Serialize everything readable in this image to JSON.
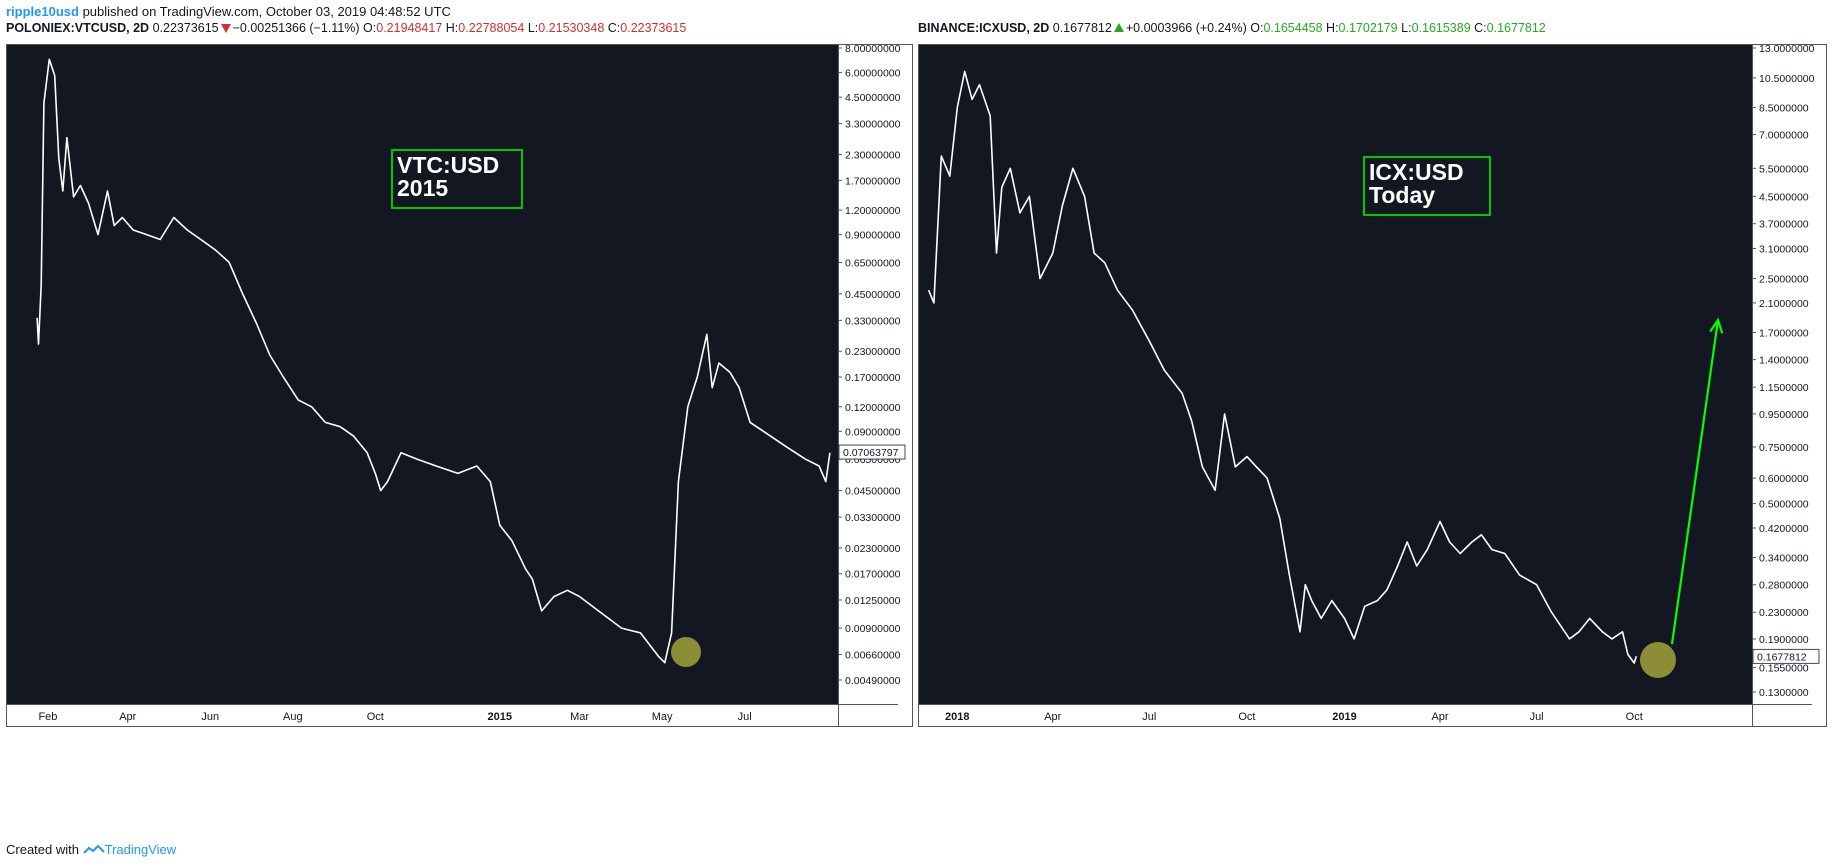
{
  "publish": {
    "author": "ripple10usd",
    "text": " published on TradingView.com, October 03, 2019 04:48:52 UTC"
  },
  "left_header": {
    "symbol": "POLONIEX:VTCUSD, 2D",
    "last": "0.22373615",
    "change": "−0.00251366 (−1.11%)",
    "o_label": "O:",
    "o": "0.21948417",
    "h_label": "H:",
    "h": "0.22788054",
    "l_label": "L:",
    "l": "0.21530348",
    "c_label": "C:",
    "c": "0.22373615"
  },
  "right_header": {
    "symbol": "BINANCE:ICXUSD, 2D",
    "last": "0.1677812",
    "change": "+0.0003966 (+0.24%)",
    "o_label": "O:",
    "o": "0.1654458",
    "h_label": "H:",
    "h": "0.1702179",
    "l_label": "L:",
    "l": "0.1615389",
    "c_label": "C:",
    "c": "0.1677812"
  },
  "footer": {
    "created_with": "Created with",
    "brand": "TradingView"
  },
  "colors": {
    "plot_bg": "#131722",
    "line": "#ffffff",
    "axis_text": "#131722",
    "annotation_box": "#00c800",
    "circle": "#b5b53b",
    "arrow": "#00ff00",
    "down": "#d32f2f",
    "up": "#22ab22"
  },
  "chart_data": [
    {
      "type": "line",
      "ylabel_scale": "log",
      "annotation": [
        "VTC:USD",
        "2015"
      ],
      "yticks": [
        "8.00000000",
        "6.00000000",
        "4.50000000",
        "3.30000000",
        "2.30000000",
        "1.70000000",
        "1.20000000",
        "0.90000000",
        "0.65000000",
        "0.45000000",
        "0.33000000",
        "0.23000000",
        "0.17000000",
        "0.12000000",
        "0.09000000",
        "0.06500000",
        "0.04500000",
        "0.03300000",
        "0.02300000",
        "0.01700000",
        "0.01250000",
        "0.00900000",
        "0.00660000",
        "0.00490000"
      ],
      "xticks": [
        "Feb",
        "Apr",
        "Jun",
        "Aug",
        "Oct",
        "2015",
        "Mar",
        "May",
        "Jul"
      ],
      "last_price_label": "0.07063797",
      "x": [
        "2014-01-24",
        "2014-01-25",
        "2014-01-27",
        "2014-01-29",
        "2014-02-02",
        "2014-02-06",
        "2014-02-09",
        "2014-02-12",
        "2014-02-15",
        "2014-02-20",
        "2014-02-25",
        "2014-03-03",
        "2014-03-10",
        "2014-03-17",
        "2014-03-22",
        "2014-03-28",
        "2014-04-05",
        "2014-04-15",
        "2014-04-25",
        "2014-05-05",
        "2014-05-15",
        "2014-05-25",
        "2014-06-05",
        "2014-06-15",
        "2014-06-25",
        "2014-07-05",
        "2014-07-15",
        "2014-07-25",
        "2014-08-05",
        "2014-08-15",
        "2014-08-25",
        "2014-09-05",
        "2014-09-15",
        "2014-09-25",
        "2014-10-01",
        "2014-10-05",
        "2014-10-10",
        "2014-10-20",
        "2014-11-01",
        "2014-11-15",
        "2014-12-01",
        "2014-12-15",
        "2014-12-25",
        "2015-01-01",
        "2015-01-10",
        "2015-01-20",
        "2015-01-25",
        "2015-02-01",
        "2015-02-10",
        "2015-02-20",
        "2015-03-01",
        "2015-03-15",
        "2015-04-01",
        "2015-04-15",
        "2015-04-28",
        "2015-05-03",
        "2015-05-08",
        "2015-05-13",
        "2015-05-20",
        "2015-05-27",
        "2015-06-03",
        "2015-06-07",
        "2015-06-12",
        "2015-06-20",
        "2015-06-27",
        "2015-07-05",
        "2015-07-15",
        "2015-08-01",
        "2015-08-15",
        "2015-08-25",
        "2015-08-30",
        "2015-09-02"
      ],
      "y": [
        0.34,
        0.25,
        0.5,
        4.2,
        7.0,
        5.8,
        2.2,
        1.5,
        2.8,
        1.4,
        1.6,
        1.3,
        0.9,
        1.5,
        1.0,
        1.1,
        0.95,
        0.9,
        0.85,
        1.1,
        0.95,
        0.85,
        0.75,
        0.65,
        0.45,
        0.32,
        0.22,
        0.17,
        0.13,
        0.12,
        0.1,
        0.095,
        0.085,
        0.07,
        0.055,
        0.045,
        0.05,
        0.07,
        0.065,
        0.06,
        0.055,
        0.06,
        0.05,
        0.03,
        0.025,
        0.018,
        0.016,
        0.011,
        0.013,
        0.014,
        0.013,
        0.011,
        0.009,
        0.0085,
        0.0065,
        0.006,
        0.0085,
        0.05,
        0.12,
        0.17,
        0.28,
        0.15,
        0.2,
        0.18,
        0.15,
        0.1,
        0.09,
        0.075,
        0.065,
        0.06,
        0.05,
        0.07
      ]
    },
    {
      "type": "line",
      "ylabel_scale": "log",
      "annotation": [
        "ICX:USD",
        "Today"
      ],
      "yticks": [
        "13.0000000",
        "10.5000000",
        "8.5000000",
        "7.0000000",
        "5.5000000",
        "4.5000000",
        "3.7000000",
        "3.1000000",
        "2.5000000",
        "2.1000000",
        "1.7000000",
        "1.4000000",
        "1.1500000",
        "0.9500000",
        "0.7500000",
        "0.6000000",
        "0.5000000",
        "0.4200000",
        "0.3400000",
        "0.2800000",
        "0.2300000",
        "0.1900000",
        "0.1550000",
        "0.1300000"
      ],
      "xticks": [
        "2018",
        "Apr",
        "Jul",
        "Oct",
        "2019",
        "Apr",
        "Jul",
        "Oct"
      ],
      "last_price_label": "0.1677812",
      "x": [
        "2017-12-05",
        "2017-12-10",
        "2017-12-17",
        "2017-12-25",
        "2018-01-01",
        "2018-01-08",
        "2018-01-15",
        "2018-01-22",
        "2018-02-01",
        "2018-02-07",
        "2018-02-12",
        "2018-02-20",
        "2018-03-01",
        "2018-03-10",
        "2018-03-20",
        "2018-04-01",
        "2018-04-10",
        "2018-04-20",
        "2018-05-01",
        "2018-05-10",
        "2018-05-20",
        "2018-06-01",
        "2018-06-15",
        "2018-07-01",
        "2018-07-15",
        "2018-08-01",
        "2018-08-10",
        "2018-08-20",
        "2018-09-01",
        "2018-09-10",
        "2018-09-20",
        "2018-10-01",
        "2018-10-10",
        "2018-10-20",
        "2018-11-01",
        "2018-11-10",
        "2018-11-20",
        "2018-11-25",
        "2018-12-01",
        "2018-12-10",
        "2018-12-20",
        "2019-01-01",
        "2019-01-10",
        "2019-01-20",
        "2019-02-01",
        "2019-02-10",
        "2019-02-20",
        "2019-03-01",
        "2019-03-10",
        "2019-03-20",
        "2019-04-01",
        "2019-04-10",
        "2019-04-20",
        "2019-05-01",
        "2019-05-10",
        "2019-05-20",
        "2019-06-01",
        "2019-06-15",
        "2019-07-01",
        "2019-07-15",
        "2019-08-01",
        "2019-08-10",
        "2019-08-20",
        "2019-09-01",
        "2019-09-10",
        "2019-09-20",
        "2019-09-25",
        "2019-10-01",
        "2019-10-03"
      ],
      "y": [
        2.3,
        2.1,
        6.0,
        5.2,
        8.5,
        11.0,
        9.0,
        10.0,
        8.0,
        3.0,
        4.8,
        5.5,
        4.0,
        4.5,
        2.5,
        3.0,
        4.2,
        5.5,
        4.5,
        3.0,
        2.8,
        2.3,
        2.0,
        1.6,
        1.3,
        1.1,
        0.9,
        0.65,
        0.55,
        0.95,
        0.65,
        0.7,
        0.65,
        0.6,
        0.45,
        0.3,
        0.2,
        0.28,
        0.25,
        0.22,
        0.25,
        0.22,
        0.19,
        0.24,
        0.25,
        0.27,
        0.32,
        0.38,
        0.32,
        0.36,
        0.44,
        0.38,
        0.35,
        0.38,
        0.4,
        0.36,
        0.35,
        0.3,
        0.28,
        0.23,
        0.19,
        0.2,
        0.22,
        0.2,
        0.19,
        0.2,
        0.17,
        0.16,
        0.1677812
      ]
    }
  ]
}
